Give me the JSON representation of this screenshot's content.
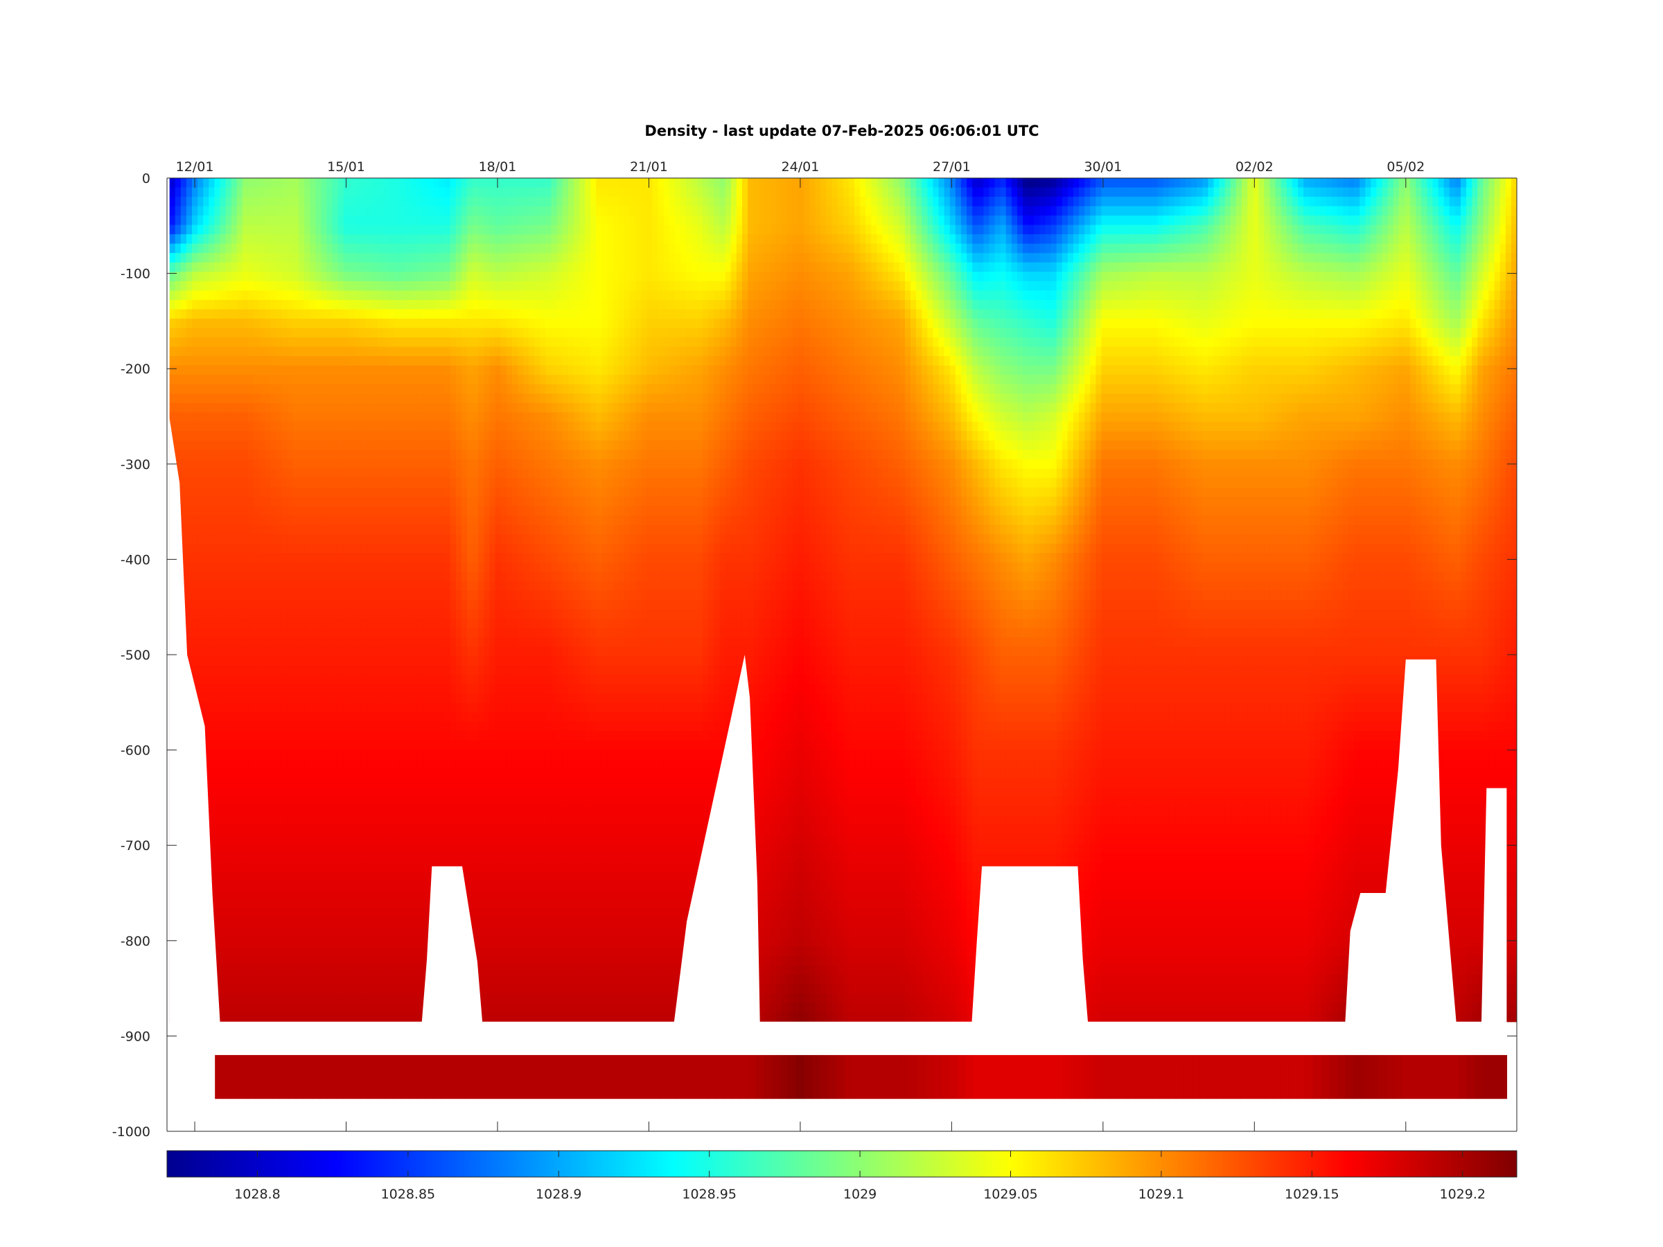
{
  "chart_data": {
    "type": "heatmap",
    "title": "Density - last update 07-Feb-2025 06:06:01 UTC",
    "x_ticks": [
      "12/01",
      "15/01",
      "18/01",
      "21/01",
      "24/01",
      "27/01",
      "30/01",
      "02/02",
      "05/02"
    ],
    "x_tick_days": [
      12,
      15,
      18,
      21,
      24,
      27,
      30,
      33,
      36
    ],
    "xlim_days": [
      11.45,
      38.2
    ],
    "y_ticks": [
      "0",
      "-100",
      "-200",
      "-300",
      "-400",
      "-500",
      "-600",
      "-700",
      "-800",
      "-900",
      "-1000"
    ],
    "y_tick_values": [
      0,
      -100,
      -200,
      -300,
      -400,
      -500,
      -600,
      -700,
      -800,
      -900,
      -1000
    ],
    "ylim": [
      -1000,
      0
    ],
    "colormap": "jet",
    "colorbar": {
      "ticks": [
        "1028.8",
        "1028.85",
        "1028.9",
        "1028.95",
        "1029",
        "1029.05",
        "1029.1",
        "1029.15",
        "1029.2"
      ],
      "tick_values": [
        1028.8,
        1028.85,
        1028.9,
        1028.95,
        1029.0,
        1029.05,
        1029.1,
        1029.15,
        1029.2
      ],
      "range": [
        1028.77,
        1029.218
      ]
    },
    "field": {
      "x_days": [
        11.5,
        12,
        13,
        14,
        15,
        16,
        17,
        17.5,
        18,
        19,
        20,
        21,
        22,
        22.5,
        23,
        24,
        25,
        26,
        27,
        27.5,
        28,
        28.5,
        29,
        30,
        31,
        32,
        33,
        34,
        35,
        36,
        37,
        37.5,
        38.2
      ],
      "depth": [
        0,
        -50,
        -100,
        -150,
        -200,
        -250,
        -300,
        -400,
        -500,
        -600,
        -700,
        -800,
        -880
      ],
      "density": [
        [
          1028.8,
          1028.83,
          1028.98,
          1029.07,
          1029.1,
          1029.12,
          1029.13,
          1029.14,
          1029.15,
          1029.16,
          1029.17,
          1029.18,
          1029.19
        ],
        [
          1028.88,
          1028.92,
          1029.02,
          1029.08,
          1029.1,
          1029.12,
          1029.13,
          1029.14,
          1029.15,
          1029.16,
          1029.17,
          1029.18,
          1029.19
        ],
        [
          1029.0,
          1029.02,
          1029.04,
          1029.08,
          1029.1,
          1029.12,
          1029.13,
          1029.14,
          1029.15,
          1029.16,
          1029.17,
          1029.18,
          1029.19
        ],
        [
          1029.01,
          1029.02,
          1029.03,
          1029.07,
          1029.1,
          1029.11,
          1029.12,
          1029.14,
          1029.15,
          1029.16,
          1029.17,
          1029.18,
          1029.19
        ],
        [
          1028.96,
          1028.95,
          1028.99,
          1029.07,
          1029.1,
          1029.11,
          1029.12,
          1029.14,
          1029.15,
          1029.16,
          1029.17,
          1029.18,
          1029.19
        ],
        [
          1028.95,
          1028.95,
          1028.98,
          1029.06,
          1029.1,
          1029.11,
          1029.12,
          1029.14,
          1029.15,
          1029.16,
          1029.17,
          1029.18,
          1029.19
        ],
        [
          1028.93,
          1028.95,
          1028.99,
          1029.06,
          1029.1,
          1029.11,
          1029.12,
          1029.14,
          1029.15,
          1029.16,
          1029.17,
          1029.18,
          1029.19
        ],
        [
          1028.96,
          1028.99,
          1029.03,
          1029.06,
          1029.09,
          1029.1,
          1029.11,
          1029.12,
          1029.14,
          1029.16,
          1029.17,
          1029.18,
          1029.19
        ],
        [
          1028.96,
          1028.98,
          1029.02,
          1029.06,
          1029.1,
          1029.11,
          1029.12,
          1029.14,
          1029.15,
          1029.16,
          1029.17,
          1029.18,
          1029.19
        ],
        [
          1028.96,
          1028.99,
          1029.03,
          1029.05,
          1029.07,
          1029.1,
          1029.11,
          1029.13,
          1029.15,
          1029.16,
          1029.17,
          1029.18,
          1029.19
        ],
        [
          1029.06,
          1029.05,
          1029.05,
          1029.05,
          1029.06,
          1029.08,
          1029.1,
          1029.12,
          1029.14,
          1029.16,
          1029.17,
          1029.18,
          1029.19
        ],
        [
          1029.06,
          1029.06,
          1029.06,
          1029.07,
          1029.08,
          1029.1,
          1029.11,
          1029.13,
          1029.14,
          1029.16,
          1029.17,
          1029.18,
          1029.19
        ],
        [
          1029.02,
          1029.04,
          1029.05,
          1029.07,
          1029.09,
          1029.1,
          1029.11,
          1029.13,
          1029.14,
          1029.16,
          1029.17,
          1029.18,
          1029.19
        ],
        [
          1029.0,
          1029.02,
          1029.05,
          1029.08,
          1029.1,
          1029.11,
          1029.12,
          1029.14,
          1029.15,
          1029.16,
          1029.17,
          1029.18,
          1029.19
        ],
        [
          1029.08,
          1029.08,
          1029.09,
          1029.1,
          1029.11,
          1029.12,
          1029.13,
          1029.14,
          1029.15,
          1029.16,
          1029.17,
          1029.18,
          1029.19
        ],
        [
          1029.09,
          1029.09,
          1029.1,
          1029.11,
          1029.12,
          1029.13,
          1029.14,
          1029.15,
          1029.16,
          1029.17,
          1029.18,
          1029.19,
          1029.21
        ],
        [
          1029.06,
          1029.07,
          1029.09,
          1029.1,
          1029.11,
          1029.12,
          1029.13,
          1029.14,
          1029.15,
          1029.16,
          1029.17,
          1029.18,
          1029.19
        ],
        [
          1029.0,
          1029.03,
          1029.06,
          1029.09,
          1029.1,
          1029.11,
          1029.12,
          1029.14,
          1029.15,
          1029.16,
          1029.17,
          1029.18,
          1029.19
        ],
        [
          1028.88,
          1028.92,
          1028.98,
          1029.02,
          1029.06,
          1029.08,
          1029.1,
          1029.12,
          1029.14,
          1029.15,
          1029.16,
          1029.17,
          1029.18
        ],
        [
          1028.8,
          1028.86,
          1028.93,
          1028.98,
          1029.02,
          1029.05,
          1029.08,
          1029.11,
          1029.13,
          1029.14,
          1029.15,
          1029.16,
          1029.17
        ],
        [
          1028.84,
          1028.9,
          1028.94,
          1028.97,
          1029.0,
          1029.03,
          1029.06,
          1029.1,
          1029.12,
          1029.14,
          1029.15,
          1029.16,
          1029.17
        ],
        [
          1028.77,
          1028.83,
          1028.92,
          1028.96,
          1028.99,
          1029.02,
          1029.05,
          1029.09,
          1029.12,
          1029.14,
          1029.15,
          1029.16,
          1029.17
        ],
        [
          1028.78,
          1028.85,
          1028.92,
          1028.95,
          1028.99,
          1029.03,
          1029.05,
          1029.1,
          1029.12,
          1029.14,
          1029.15,
          1029.16,
          1029.17
        ],
        [
          1028.86,
          1028.94,
          1029.01,
          1029.05,
          1029.07,
          1029.09,
          1029.11,
          1029.13,
          1029.14,
          1029.15,
          1029.16,
          1029.17,
          1029.18
        ],
        [
          1028.86,
          1028.94,
          1029.02,
          1029.05,
          1029.07,
          1029.09,
          1029.11,
          1029.13,
          1029.14,
          1029.15,
          1029.16,
          1029.17,
          1029.18
        ],
        [
          1028.89,
          1028.97,
          1029.02,
          1029.04,
          1029.06,
          1029.08,
          1029.1,
          1029.12,
          1029.14,
          1029.15,
          1029.16,
          1029.17,
          1029.18
        ],
        [
          1029.04,
          1029.04,
          1029.04,
          1029.05,
          1029.07,
          1029.08,
          1029.1,
          1029.12,
          1029.14,
          1029.15,
          1029.16,
          1029.17,
          1029.18
        ],
        [
          1028.9,
          1028.97,
          1029.02,
          1029.05,
          1029.07,
          1029.09,
          1029.1,
          1029.12,
          1029.14,
          1029.15,
          1029.16,
          1029.17,
          1029.18
        ],
        [
          1028.88,
          1028.95,
          1029.01,
          1029.05,
          1029.08,
          1029.09,
          1029.11,
          1029.13,
          1029.14,
          1029.16,
          1029.17,
          1029.18,
          1029.2
        ],
        [
          1029.0,
          1029.02,
          1029.04,
          1029.06,
          1029.09,
          1029.1,
          1029.11,
          1029.13,
          1029.14,
          1029.16,
          1029.17,
          1029.18,
          1029.19
        ],
        [
          1028.88,
          1028.94,
          1028.98,
          1029.01,
          1029.05,
          1029.08,
          1029.1,
          1029.12,
          1029.14,
          1029.16,
          1029.17,
          1029.18,
          1029.19
        ],
        [
          1028.98,
          1029.0,
          1029.03,
          1029.06,
          1029.09,
          1029.1,
          1029.11,
          1029.13,
          1029.14,
          1029.16,
          1029.17,
          1029.18,
          1029.2
        ],
        [
          1029.07,
          1029.08,
          1029.09,
          1029.1,
          1029.11,
          1029.12,
          1029.13,
          1029.14,
          1029.15,
          1029.16,
          1029.17,
          1029.18,
          1029.2
        ]
      ]
    },
    "profile_max_depth": {
      "x_days": [
        11.5,
        11.7,
        11.85,
        12.2,
        12.35,
        12.5,
        16.5,
        16.6,
        16.7,
        17.3,
        17.6,
        17.7,
        21.5,
        21.75,
        22.9,
        23.0,
        23.15,
        23.2,
        27.4,
        27.5,
        27.6,
        29.5,
        29.6,
        29.7,
        34.8,
        34.9,
        35.1,
        35.6,
        35.85,
        36.0,
        36.6,
        36.7,
        37.0,
        37.5,
        37.6,
        38.0
      ],
      "depth": [
        -252,
        -320,
        -500,
        -575,
        -750,
        -885,
        -885,
        -820,
        -722,
        -722,
        -822,
        -885,
        -885,
        -780,
        -500,
        -545,
        -740,
        -885,
        -885,
        -800,
        -722,
        -722,
        -820,
        -885,
        -885,
        -790,
        -750,
        -750,
        -620,
        -505,
        -505,
        -700,
        -885,
        -885,
        -640,
        -640
      ]
    },
    "bottom_band": {
      "depth_top": -920,
      "depth_bottom": -966,
      "x_start_days": 12.4,
      "x_end_days": 38.0
    }
  }
}
